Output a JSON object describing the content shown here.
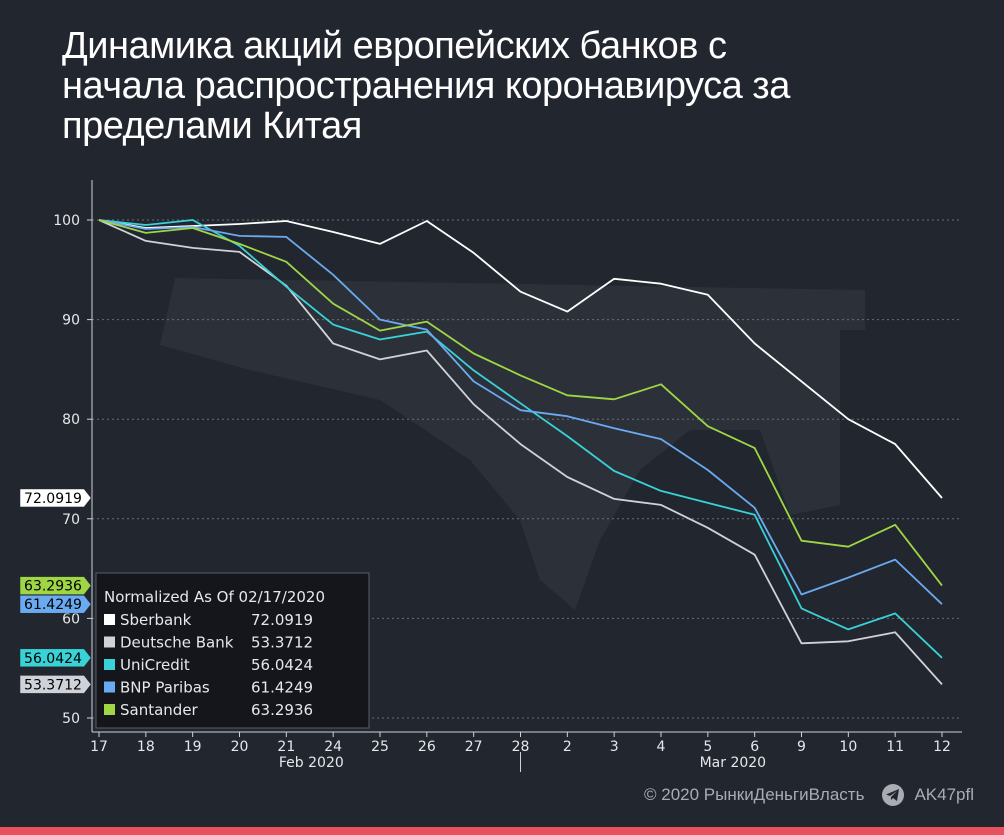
{
  "title_lines": [
    "Динамика акций европейских банков с",
    "начала распространения коронавируса за",
    "пределами Китая"
  ],
  "footer": {
    "copyright": "© 2020  РынкиДеньгиВласть",
    "channel": "AK47pfl",
    "channel_icon": "telegram-icon"
  },
  "colors": {
    "background": "#22262f",
    "accent_bar": "#e8505b",
    "grid": "#6a6e76"
  },
  "chart_data": {
    "type": "line",
    "x": [
      "17",
      "18",
      "19",
      "20",
      "21",
      "24",
      "25",
      "26",
      "27",
      "28",
      "2",
      "3",
      "4",
      "5",
      "6",
      "9",
      "10",
      "11",
      "12"
    ],
    "month_labels": [
      {
        "label": "Feb 2020",
        "at": "21"
      },
      {
        "label": "Mar 2020",
        "at": "5"
      }
    ],
    "ylim": [
      48,
      104
    ],
    "yticks": [
      50,
      60,
      70,
      80,
      90,
      100
    ],
    "grid": true,
    "legend": {
      "title": "Normalized As Of 02/17/2020",
      "position": "bottom-left"
    },
    "series": [
      {
        "name": "Sberbank",
        "color": "#ffffff",
        "last": "72.0919",
        "values": [
          100,
          99.2,
          99.4,
          99.6,
          99.9,
          98.8,
          97.6,
          99.9,
          96.7,
          92.8,
          90.8,
          94.1,
          93.6,
          92.5,
          87.6,
          83.8,
          80.0,
          77.5,
          72.0919
        ]
      },
      {
        "name": "Deutsche Bank",
        "color": "#cfd2d8",
        "last": "53.3712",
        "values": [
          100,
          97.9,
          97.2,
          96.8,
          93.4,
          87.6,
          86.0,
          86.9,
          81.5,
          77.5,
          74.2,
          72.0,
          71.4,
          69.1,
          66.4,
          57.5,
          57.7,
          58.6,
          53.3712
        ]
      },
      {
        "name": "UniCredit",
        "color": "#39d2d6",
        "last": "56.0424",
        "values": [
          100,
          99.5,
          100.0,
          97.4,
          93.3,
          89.5,
          88.0,
          88.8,
          84.9,
          81.6,
          78.3,
          74.8,
          72.8,
          71.6,
          70.4,
          61.0,
          58.9,
          60.5,
          56.0424
        ]
      },
      {
        "name": "BNP Paribas",
        "color": "#6aaaf0",
        "last": "61.4249",
        "values": [
          100,
          99.1,
          99.3,
          98.4,
          98.3,
          94.5,
          90.0,
          89.0,
          83.8,
          80.9,
          80.3,
          79.1,
          78.0,
          74.9,
          71.1,
          62.4,
          64.1,
          65.9,
          61.4249
        ]
      },
      {
        "name": "Santander",
        "color": "#9fd645",
        "last": "63.2936",
        "values": [
          100,
          98.7,
          99.2,
          97.6,
          95.8,
          91.6,
          88.9,
          89.8,
          86.6,
          84.4,
          82.4,
          82.0,
          83.5,
          79.3,
          77.1,
          67.8,
          67.2,
          69.4,
          63.2936
        ]
      }
    ],
    "last_value_labels": [
      {
        "text": "72.0919",
        "color": "#ffffff",
        "text_color": "#000000",
        "value": 72.0919
      },
      {
        "text": "63.2936",
        "color": "#9fd645",
        "text_color": "#000000",
        "value": 63.2936
      },
      {
        "text": "61.4249",
        "color": "#6aaaf0",
        "text_color": "#000000",
        "value": 61.4249
      },
      {
        "text": "56.0424",
        "color": "#39d2d6",
        "text_color": "#000000",
        "value": 56.0424
      },
      {
        "text": "53.3712",
        "color": "#cfd2d8",
        "text_color": "#000000",
        "value": 53.3712
      }
    ]
  }
}
